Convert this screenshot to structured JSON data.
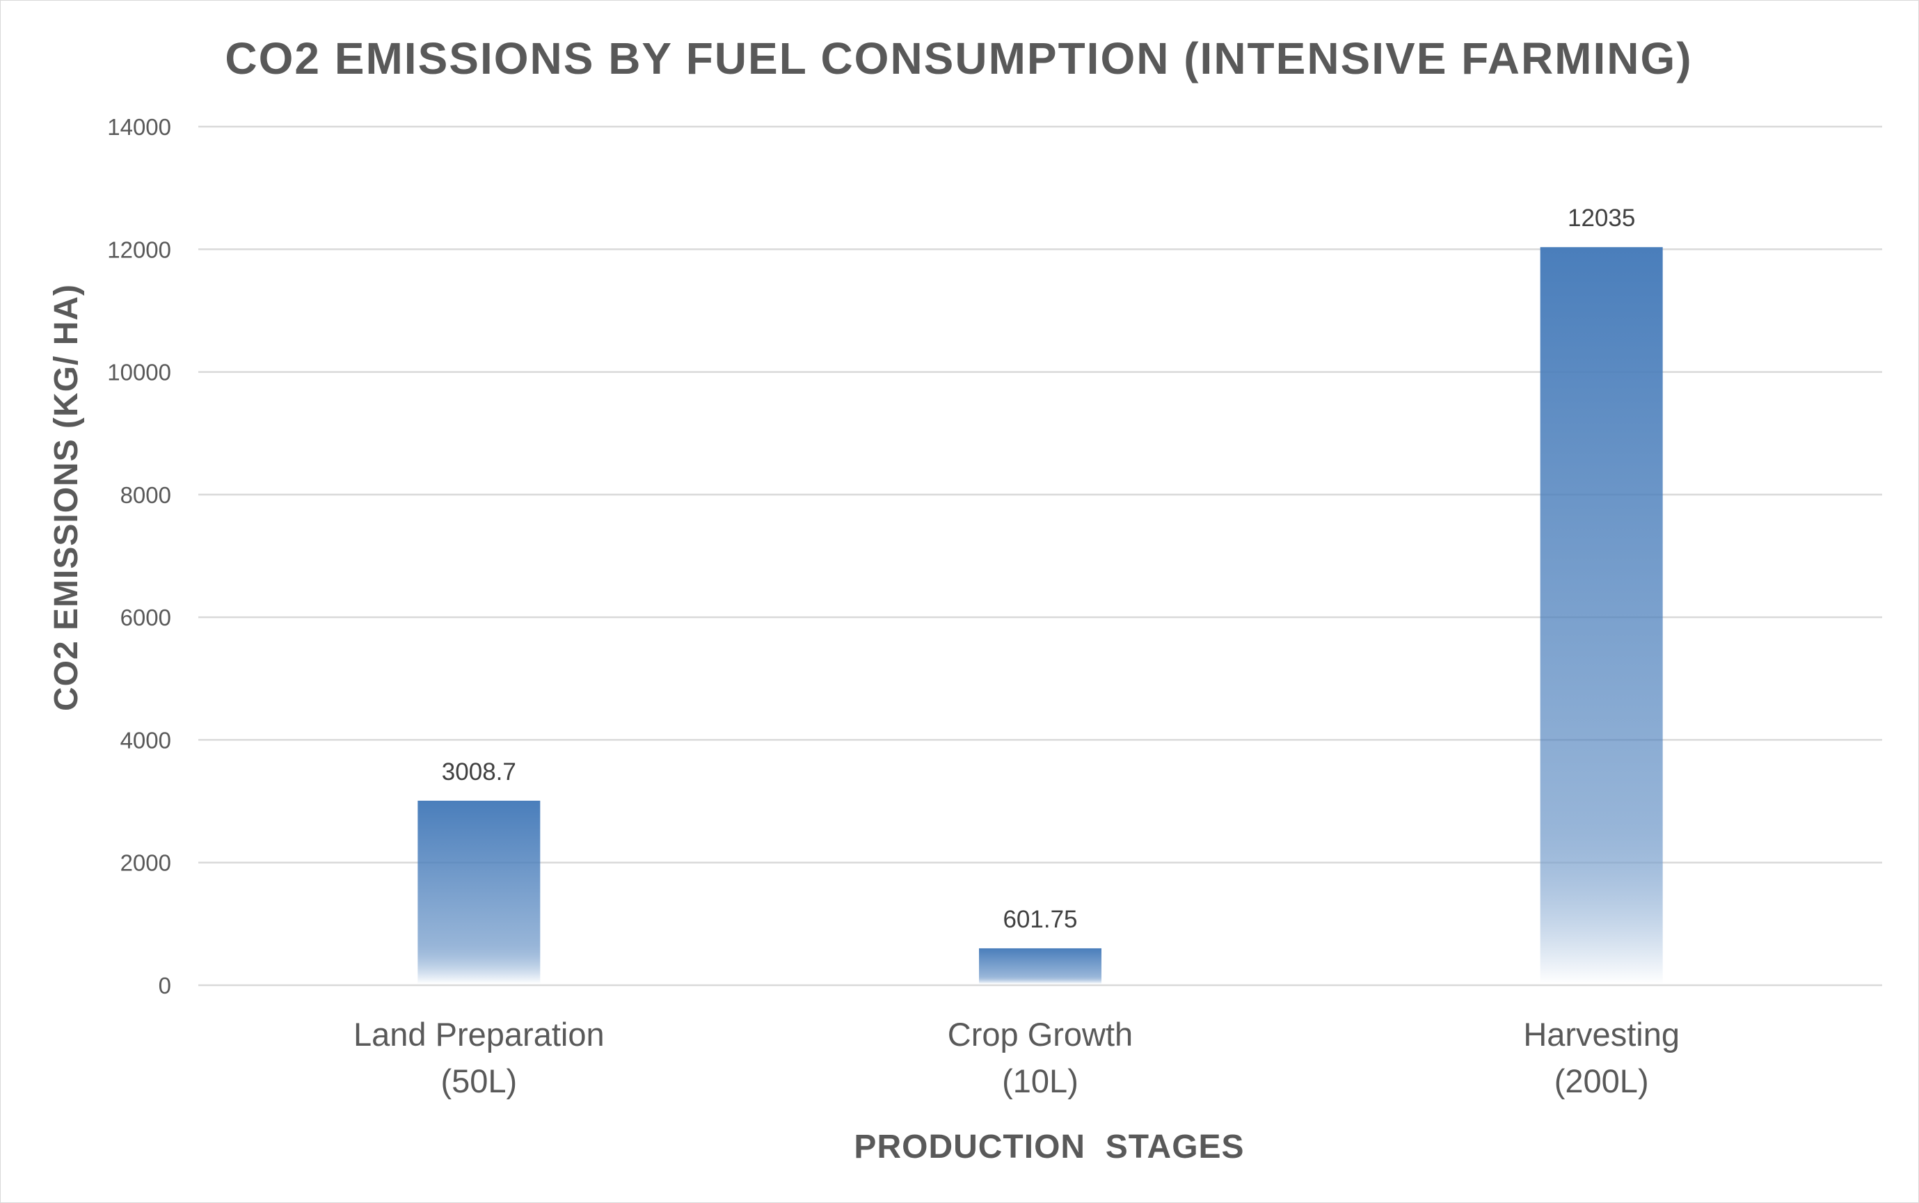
{
  "chart_data": {
    "type": "bar",
    "title": "CO2 EMISSIONS BY FUEL CONSUMPTION (INTENSIVE FARMING)",
    "xlabel": "PRODUCTION  STAGES",
    "ylabel": "CO2 EMISSIONS (KG/ HA)",
    "categories": [
      [
        "Land Preparation",
        "(50L)"
      ],
      [
        "Crop Growth",
        "(10L)"
      ],
      [
        "Harvesting",
        "(200L)"
      ]
    ],
    "values": [
      3008.7,
      601.75,
      12035
    ],
    "data_labels": [
      "3008.7",
      "601.75",
      "12035"
    ],
    "ylim": [
      0,
      14000
    ],
    "yticks": [
      "0",
      "2000",
      "4000",
      "6000",
      "8000",
      "10000",
      "12000",
      "14000"
    ],
    "grid": true,
    "legend": "none",
    "bar_color_top": "#4a7ebb",
    "bar_color_bottom": "#ffffff"
  }
}
